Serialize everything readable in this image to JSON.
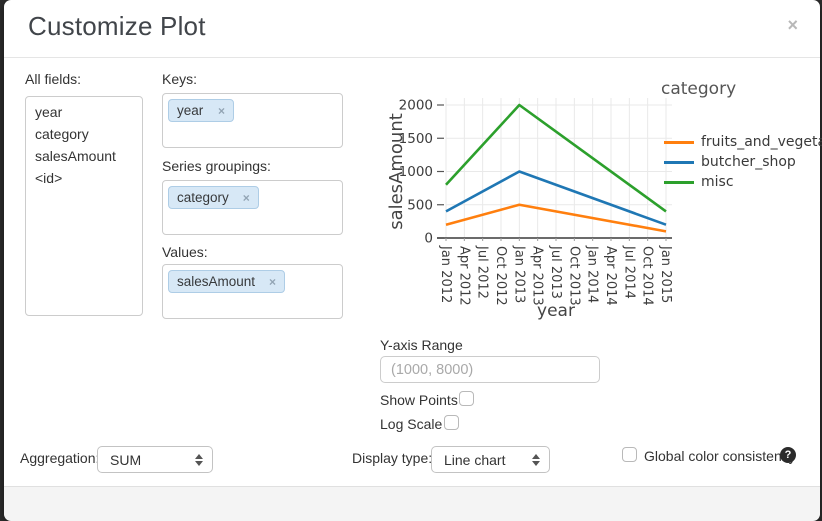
{
  "dialog": {
    "title": "Customize Plot",
    "close_glyph": "×"
  },
  "fields_panel": {
    "label": "All fields:",
    "items": [
      "year",
      "category",
      "salesAmount",
      "<id>"
    ]
  },
  "sections": {
    "keys": {
      "label": "Keys:",
      "tag": "year",
      "remove_glyph": "×"
    },
    "series_groupings": {
      "label": "Series groupings:",
      "tag": "category",
      "remove_glyph": "×"
    },
    "values": {
      "label": "Values:",
      "tag": "salesAmount",
      "remove_glyph": "×"
    }
  },
  "controls": {
    "y_axis_range": {
      "label": "Y-axis Range",
      "placeholder": "(1000, 8000)",
      "value": ""
    },
    "show_points": {
      "label": "Show Points",
      "checked": false
    },
    "log_scale": {
      "label": "Log Scale",
      "checked": false
    },
    "aggregation": {
      "label": "Aggregation:",
      "value": "SUM"
    },
    "display_type": {
      "label": "Display type:",
      "value": "Line chart"
    },
    "global_color_consistency": {
      "label": "Global color consistency",
      "checked": false,
      "help_glyph": "?"
    }
  },
  "chart_data": {
    "type": "line",
    "title": "",
    "xlabel": "year",
    "ylabel": "salesAmount",
    "legend_title": "category",
    "legend_position": "right",
    "grid": true,
    "ylim": [
      0,
      2000
    ],
    "y_ticks": [
      0,
      500,
      1000,
      1500,
      2000
    ],
    "x_ticks": [
      "Jan 2012",
      "Apr 2012",
      "Jul 2012",
      "Oct 2012",
      "Jan 2013",
      "Apr 2013",
      "Jul 2013",
      "Oct 2013",
      "Jan 2014",
      "Apr 2014",
      "Jul 2014",
      "Oct 2014",
      "Jan 2015"
    ],
    "series": [
      {
        "name": "fruits_and_vegetables",
        "color": "#ff7f0e",
        "x": [
          "Jan 2012",
          "Jan 2013",
          "Jan 2015"
        ],
        "values": [
          200,
          500,
          100
        ]
      },
      {
        "name": "butcher_shop",
        "color": "#1f77b4",
        "x": [
          "Jan 2012",
          "Jan 2013",
          "Jan 2015"
        ],
        "values": [
          400,
          1000,
          200
        ]
      },
      {
        "name": "misc",
        "color": "#2ca02c",
        "x": [
          "Jan 2012",
          "Jan 2013",
          "Jan 2015"
        ],
        "values": [
          800,
          2000,
          400
        ]
      }
    ]
  }
}
